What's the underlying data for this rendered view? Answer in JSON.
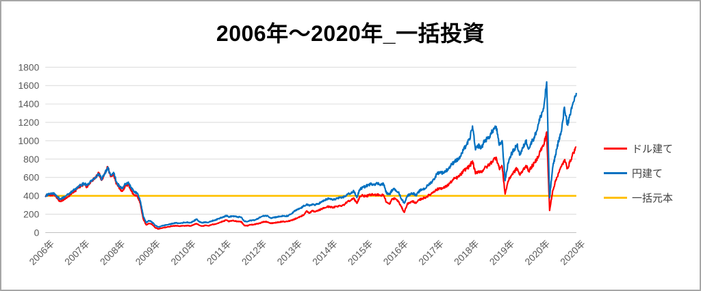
{
  "chart": {
    "border_color": "#a6a6a6",
    "background": "#ffffff",
    "gridline_color": "#d9d9d9",
    "axis_line_color": "#bfbfbf",
    "tick_label_color": "#595959",
    "legend_label_color": "#404040"
  },
  "chart_data": {
    "type": "line",
    "title": "2006年～2020年_一括投資",
    "xlabel": "",
    "ylabel": "",
    "x_axis": {
      "tick_labels": [
        "2006年",
        "2007年",
        "2008年",
        "2009年",
        "2010年",
        "2011年",
        "2012年",
        "2013年",
        "2014年",
        "2015年",
        "2016年",
        "2017年",
        "2018年",
        "2019年",
        "2020年",
        "2020年"
      ],
      "label_rotation_deg": -45,
      "frequency": "monthly",
      "start": "2006-01",
      "end": "2020-12"
    },
    "y_axis": {
      "min": 0,
      "max": 1800,
      "step": 200,
      "tick_labels": [
        "0",
        "200",
        "400",
        "600",
        "800",
        "1000",
        "1200",
        "1400",
        "1600",
        "1800"
      ]
    },
    "grid": "horizontal",
    "legend_position": "right",
    "series": [
      {
        "name": "ドル建て",
        "color": "#ff0000",
        "values": [
          400,
          410,
          405,
          420,
          370,
          340,
          355,
          380,
          400,
          430,
          450,
          490,
          505,
          525,
          495,
          540,
          575,
          605,
          650,
          570,
          645,
          718,
          610,
          635,
          530,
          475,
          450,
          510,
          525,
          450,
          410,
          400,
          320,
          150,
          85,
          100,
          90,
          55,
          40,
          48,
          55,
          60,
          65,
          72,
          75,
          70,
          72,
          75,
          76,
          72,
          85,
          98,
          78,
          72,
          78,
          74,
          85,
          92,
          100,
          112,
          123,
          135,
          120,
          130,
          126,
          122,
          120,
          80,
          74,
          85,
          88,
          92,
          98,
          112,
          120,
          115,
          100,
          105,
          110,
          115,
          120,
          118,
          125,
          135,
          147,
          160,
          175,
          190,
          233,
          215,
          235,
          225,
          240,
          255,
          268,
          280,
          283,
          270,
          285,
          290,
          295,
          310,
          344,
          355,
          370,
          320,
          390,
          405,
          393,
          405,
          412,
          410,
          415,
          405,
          410,
          330,
          310,
          368,
          370,
          340,
          280,
          220,
          310,
          330,
          340,
          320,
          355,
          370,
          380,
          400,
          420,
          450,
          467,
          485,
          480,
          500,
          525,
          560,
          590,
          600,
          630,
          670,
          700,
          720,
          780,
          640,
          670,
          660,
          700,
          720,
          750,
          790,
          820,
          700,
          720,
          420,
          560,
          620,
          660,
          700,
          625,
          680,
          730,
          670,
          720,
          760,
          820,
          900,
          950,
          1095,
          240,
          450,
          560,
          650,
          720,
          790,
          700,
          780,
          870,
          930
        ]
      },
      {
        "name": "円建て",
        "color": "#0070c0",
        "values": [
          400,
          415,
          420,
          430,
          390,
          365,
          380,
          400,
          420,
          450,
          470,
          500,
          516,
          535,
          515,
          545,
          572,
          600,
          640,
          580,
          640,
          712,
          630,
          655,
          550,
          500,
          480,
          530,
          550,
          480,
          440,
          430,
          345,
          180,
          110,
          130,
          115,
          80,
          60,
          70,
          78,
          85,
          90,
          100,
          105,
          100,
          105,
          110,
          112,
          108,
          125,
          147,
          115,
          108,
          115,
          110,
          125,
          135,
          145,
          160,
          172,
          184,
          170,
          180,
          175,
          170,
          168,
          125,
          118,
          130,
          135,
          140,
          160,
          175,
          185,
          180,
          160,
          165,
          170,
          175,
          180,
          178,
          185,
          205,
          233,
          250,
          265,
          285,
          307,
          290,
          310,
          300,
          315,
          330,
          350,
          365,
          368,
          355,
          370,
          375,
          380,
          395,
          418,
          430,
          450,
          381,
          470,
          491,
          504,
          520,
          530,
          528,
          535,
          525,
          530,
          430,
          415,
          467,
          470,
          440,
          370,
          320,
          400,
          420,
          430,
          400,
          450,
          470,
          480,
          516,
          545,
          580,
          640,
          660,
          650,
          670,
          700,
          740,
          780,
          790,
          830,
          900,
          960,
          1010,
          1160,
          900,
          950,
          920,
          1000,
          1020,
          1060,
          1120,
          1155,
          950,
          1000,
          565,
          760,
          850,
          900,
          955,
          845,
          920,
          1000,
          915,
          990,
          1050,
          1150,
          1270,
          1350,
          1640,
          380,
          700,
          850,
          1000,
          1100,
          1365,
          1180,
          1280,
          1420,
          1520
        ]
      },
      {
        "name": "一括元本",
        "color": "#ffc000",
        "constant": 400
      }
    ]
  }
}
